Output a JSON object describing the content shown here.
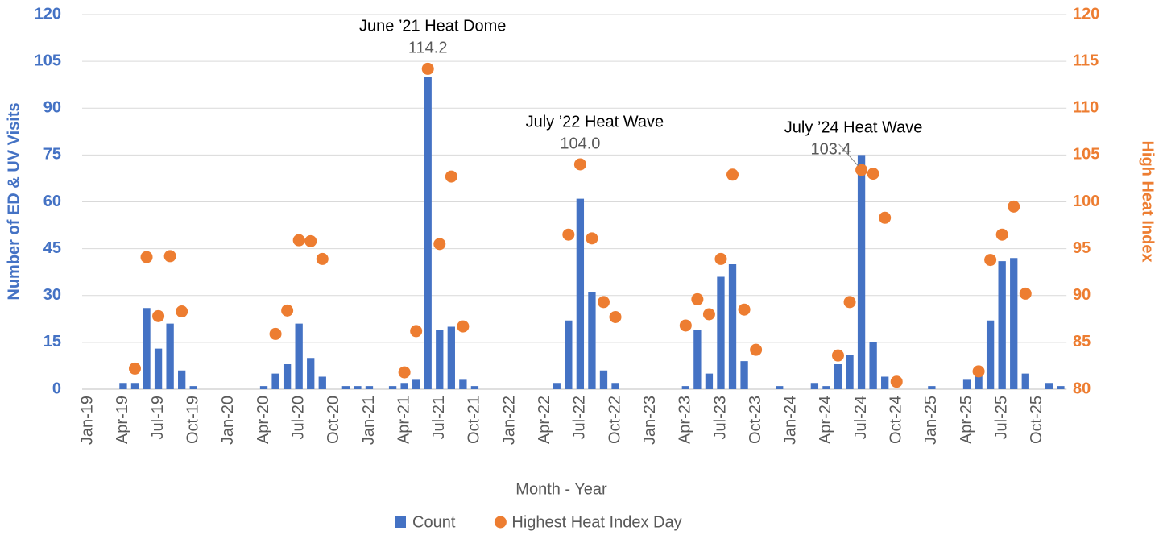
{
  "chart_data": {
    "type": "bar-scatter",
    "x_label": "Month - Year",
    "y_label": "Number of ED & UV Visits",
    "y2_label": "High Heat Index",
    "categories": [
      "Jan-19",
      null,
      null,
      "Apr-19",
      null,
      null,
      "Jul-19",
      null,
      null,
      "Oct-19",
      null,
      null,
      "Jan-20",
      null,
      null,
      "Apr-20",
      null,
      null,
      "Jul-20",
      null,
      null,
      "Oct-20",
      null,
      null,
      "Jan-21",
      null,
      null,
      "Apr-21",
      null,
      null,
      "Jul-21",
      null,
      null,
      "Oct-21",
      null,
      null,
      "Jan-22",
      null,
      null,
      "Apr-22",
      null,
      null,
      "Jul-22",
      null,
      null,
      "Oct-22",
      null,
      null,
      "Jan-23",
      null,
      null,
      "Apr-23",
      null,
      null,
      "Jul-23",
      null,
      null,
      "Oct-23",
      null,
      null,
      "Jan-24",
      null,
      null,
      "Apr-24",
      null,
      null,
      "Jul-24",
      null,
      null,
      "Oct-24",
      null,
      null,
      "Jan-25",
      null,
      null,
      "Apr-25",
      null,
      null,
      "Jul-25",
      null,
      null,
      "Oct-25",
      null,
      null
    ],
    "series": [
      {
        "name": "Count",
        "type": "bar",
        "color": "#4472c4",
        "values": [
          0,
          0,
          0,
          2,
          2,
          26,
          13,
          21,
          6,
          1,
          0,
          0,
          0,
          0,
          0,
          1,
          5,
          8,
          21,
          10,
          4,
          0,
          1,
          1,
          1,
          0,
          1,
          2,
          3,
          100,
          19,
          20,
          3,
          1,
          0,
          0,
          0,
          0,
          0,
          0,
          2,
          22,
          61,
          31,
          6,
          2,
          0,
          0,
          0,
          0,
          0,
          1,
          19,
          5,
          36,
          40,
          9,
          0,
          0,
          1,
          0,
          0,
          2,
          1,
          8,
          11,
          75,
          15,
          4,
          0,
          0,
          0,
          1,
          0,
          0,
          3,
          5,
          22,
          41,
          42,
          5,
          0,
          2,
          1
        ]
      },
      {
        "name": "Highest Heat Index Day",
        "type": "scatter",
        "axis": "y2",
        "color": "#ed7d31",
        "values": [
          null,
          null,
          null,
          null,
          82.2,
          94.1,
          87.8,
          94.2,
          88.3,
          null,
          null,
          null,
          null,
          null,
          null,
          null,
          85.9,
          88.4,
          95.9,
          95.8,
          93.9,
          null,
          null,
          null,
          null,
          null,
          null,
          81.8,
          86.2,
          114.2,
          95.5,
          102.7,
          86.7,
          null,
          null,
          null,
          null,
          null,
          null,
          null,
          null,
          96.5,
          104.0,
          96.1,
          89.3,
          87.7,
          null,
          null,
          null,
          null,
          null,
          86.8,
          89.6,
          88.0,
          93.9,
          102.9,
          88.5,
          84.2,
          null,
          null,
          null,
          null,
          null,
          null,
          83.6,
          89.3,
          103.4,
          103.0,
          98.3,
          80.8,
          null,
          null,
          null,
          null,
          null,
          null,
          81.9,
          93.8,
          96.5,
          99.5,
          90.2,
          null,
          null,
          null
        ],
        "value_labels": [
          null,
          null,
          null,
          null,
          null,
          null,
          null,
          null,
          null,
          null,
          null,
          null,
          null,
          null,
          null,
          null,
          null,
          null,
          null,
          null,
          null,
          null,
          null,
          null,
          null,
          null,
          null,
          null,
          null,
          "114.2",
          null,
          null,
          null,
          null,
          null,
          null,
          null,
          null,
          null,
          null,
          null,
          null,
          "104.0",
          null,
          null,
          null,
          null,
          null,
          null,
          null,
          null,
          null,
          null,
          null,
          null,
          null,
          null,
          null,
          null,
          null,
          null,
          null,
          null,
          null,
          null,
          null,
          "103.4",
          null,
          null,
          null,
          null,
          null,
          null,
          null,
          null,
          null,
          null,
          null,
          null,
          null,
          null,
          null,
          null,
          null
        ]
      }
    ],
    "annotations": [
      "June ’21 Heat Dome",
      "July ’22 Heat Wave",
      "July ’24 Heat Wave"
    ],
    "ylim": [
      0,
      120
    ],
    "yticks": [
      0,
      15,
      30,
      45,
      60,
      75,
      90,
      105,
      120
    ],
    "y2lim": [
      80,
      120
    ],
    "y2ticks": [
      80,
      85,
      90,
      95,
      100,
      105,
      110,
      115,
      120
    ],
    "grid": true,
    "legend": "bottom"
  }
}
